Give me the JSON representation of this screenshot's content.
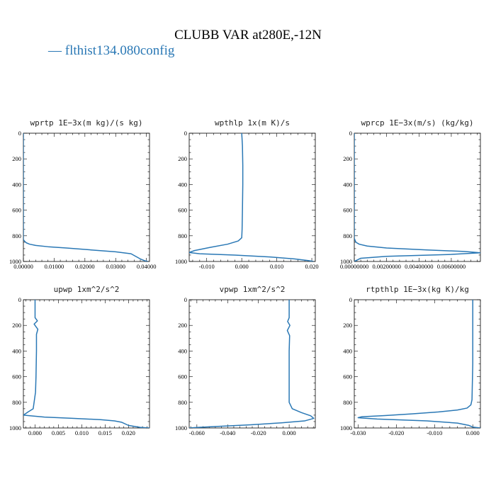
{
  "figure": {
    "title": "CLUBB VAR at280E,-12N",
    "legend": "— flthist134.080config",
    "line_color": "#2a78b5"
  },
  "chart_data": [
    {
      "type": "line",
      "title": "wprtp  1E−3x(m kg)/(s kg)",
      "xlim": [
        0,
        0.041
      ],
      "ylim": [
        1000,
        0
      ],
      "xticks": [
        0,
        0.01,
        0.02,
        0.03,
        0.04
      ],
      "xtick_labels": [
        "0.00000",
        "0.01000",
        "0.02000",
        "0.03000",
        "0.04000"
      ],
      "yticks": [
        0,
        200,
        400,
        600,
        800,
        1000
      ],
      "ytick_labels": [
        "0",
        "200",
        "400",
        "600",
        "800",
        "1000"
      ],
      "series": [
        {
          "x": [
            0,
            0,
            0,
            0.0005,
            0.001,
            0.002,
            0.004,
            0.008,
            0.014,
            0.022,
            0.03,
            0.035,
            0.0365,
            0.038,
            0.0395,
            0.0405
          ],
          "y": [
            0,
            700,
            830,
            845,
            855,
            865,
            875,
            885,
            895,
            910,
            925,
            940,
            960,
            980,
            995,
            1000
          ]
        }
      ]
    },
    {
      "type": "line",
      "title": "wpthlp  1x(m K)/s",
      "xlim": [
        -0.015,
        0.021
      ],
      "ylim": [
        1000,
        0
      ],
      "xticks": [
        -0.01,
        0,
        0.01,
        0.02
      ],
      "xtick_labels": [
        "-0.010",
        "0.000",
        "0.010",
        "0.020"
      ],
      "yticks": [
        0,
        200,
        400,
        600,
        800,
        1000
      ],
      "ytick_labels": [
        "0",
        "200",
        "400",
        "600",
        "800",
        "1000"
      ],
      "series": [
        {
          "x": [
            0,
            0.0002,
            0.0003,
            0.0003,
            0.0002,
            0.0001,
            0,
            -0.001,
            -0.004,
            -0.009,
            -0.0135,
            -0.015,
            -0.012,
            -0.002,
            0.008,
            0.015,
            0.019,
            0.0205
          ],
          "y": [
            0,
            100,
            250,
            400,
            600,
            750,
            815,
            840,
            865,
            890,
            915,
            930,
            940,
            950,
            965,
            980,
            993,
            1000
          ]
        }
      ]
    },
    {
      "type": "line",
      "title": "wprcp  1E−3x(m/s) (kg/kg)",
      "xlim": [
        0,
        0.0078
      ],
      "ylim": [
        1000,
        0
      ],
      "xticks": [
        0,
        0.002,
        0.004,
        0.006
      ],
      "xtick_labels": [
        "0.00000000",
        "0.00200000",
        "0.00400000",
        "0.00600000"
      ],
      "yticks": [
        0,
        200,
        400,
        600,
        800,
        1000
      ],
      "ytick_labels": [
        "0",
        "200",
        "400",
        "600",
        "800",
        "1000"
      ],
      "series": [
        {
          "x": [
            0,
            0,
            0.0001,
            0.0003,
            0.0008,
            0.002,
            0.0045,
            0.0068,
            0.0078,
            0.006,
            0.002,
            0.0004,
            0
          ],
          "y": [
            0,
            820,
            850,
            865,
            880,
            895,
            910,
            922,
            932,
            945,
            960,
            975,
            1000
          ]
        }
      ]
    },
    {
      "type": "line",
      "title": "upwp  1xm^2/s^2",
      "xlim": [
        -0.0025,
        0.0245
      ],
      "ylim": [
        1000,
        0
      ],
      "xticks": [
        0,
        0.005,
        0.01,
        0.015,
        0.02
      ],
      "xtick_labels": [
        "0.000",
        "0.005",
        "0.010",
        "0.015",
        "0.020"
      ],
      "yticks": [
        0,
        200,
        400,
        600,
        800,
        1000
      ],
      "ytick_labels": [
        "0",
        "200",
        "400",
        "600",
        "800",
        "1000"
      ],
      "series": [
        {
          "x": [
            0,
            0,
            0.0005,
            -0.0002,
            0.0006,
            0.0003,
            0.0003,
            0.0002,
            0.0001,
            -0.0004,
            -0.0015,
            -0.0025,
            0.002,
            0.008,
            0.014,
            0.017,
            0.0185,
            0.02,
            0.0225,
            0.0245
          ],
          "y": [
            0,
            140,
            165,
            190,
            230,
            270,
            400,
            600,
            720,
            850,
            875,
            900,
            915,
            925,
            935,
            945,
            955,
            980,
            995,
            1000
          ]
        }
      ]
    },
    {
      "type": "line",
      "title": "vpwp  1xm^2/s^2",
      "xlim": [
        -0.065,
        0.017
      ],
      "ylim": [
        1000,
        0
      ],
      "xticks": [
        -0.06,
        -0.04,
        -0.02,
        0
      ],
      "xtick_labels": [
        "-0.060",
        "-0.040",
        "-0.020",
        "0.000"
      ],
      "yticks": [
        0,
        200,
        400,
        600,
        800,
        1000
      ],
      "ytick_labels": [
        "0",
        "200",
        "400",
        "600",
        "800",
        "1000"
      ],
      "series": [
        {
          "x": [
            0,
            0,
            -0.001,
            0.0005,
            -0.0012,
            0.0003,
            0,
            0,
            0,
            0.002,
            0.008,
            0.014,
            0.016,
            0.01,
            -0.005,
            -0.025,
            -0.045,
            -0.06,
            -0.065
          ],
          "y": [
            0,
            140,
            170,
            200,
            240,
            280,
            400,
            600,
            800,
            850,
            880,
            905,
            925,
            945,
            960,
            975,
            987,
            996,
            1000
          ]
        }
      ]
    },
    {
      "type": "line",
      "title": "rtpthlp  1E−3x(kg K)/kg",
      "xlim": [
        -0.031,
        0.002
      ],
      "ylim": [
        1000,
        0
      ],
      "xticks": [
        -0.03,
        -0.02,
        -0.01,
        0
      ],
      "xtick_labels": [
        "-0.030",
        "-0.020",
        "-0.010",
        "0.000"
      ],
      "yticks": [
        0,
        200,
        400,
        600,
        800,
        1000
      ],
      "ytick_labels": [
        "0",
        "200",
        "400",
        "600",
        "800",
        "1000"
      ],
      "series": [
        {
          "x": [
            0,
            0,
            -0.0002,
            -0.0005,
            -0.0015,
            -0.004,
            -0.009,
            -0.016,
            -0.023,
            -0.029,
            -0.03,
            -0.025,
            -0.012,
            -0.004,
            -0.001,
            0,
            0.002
          ],
          "y": [
            0,
            500,
            780,
            820,
            845,
            860,
            875,
            890,
            903,
            912,
            920,
            930,
            945,
            962,
            980,
            993,
            1000
          ]
        }
      ]
    }
  ]
}
